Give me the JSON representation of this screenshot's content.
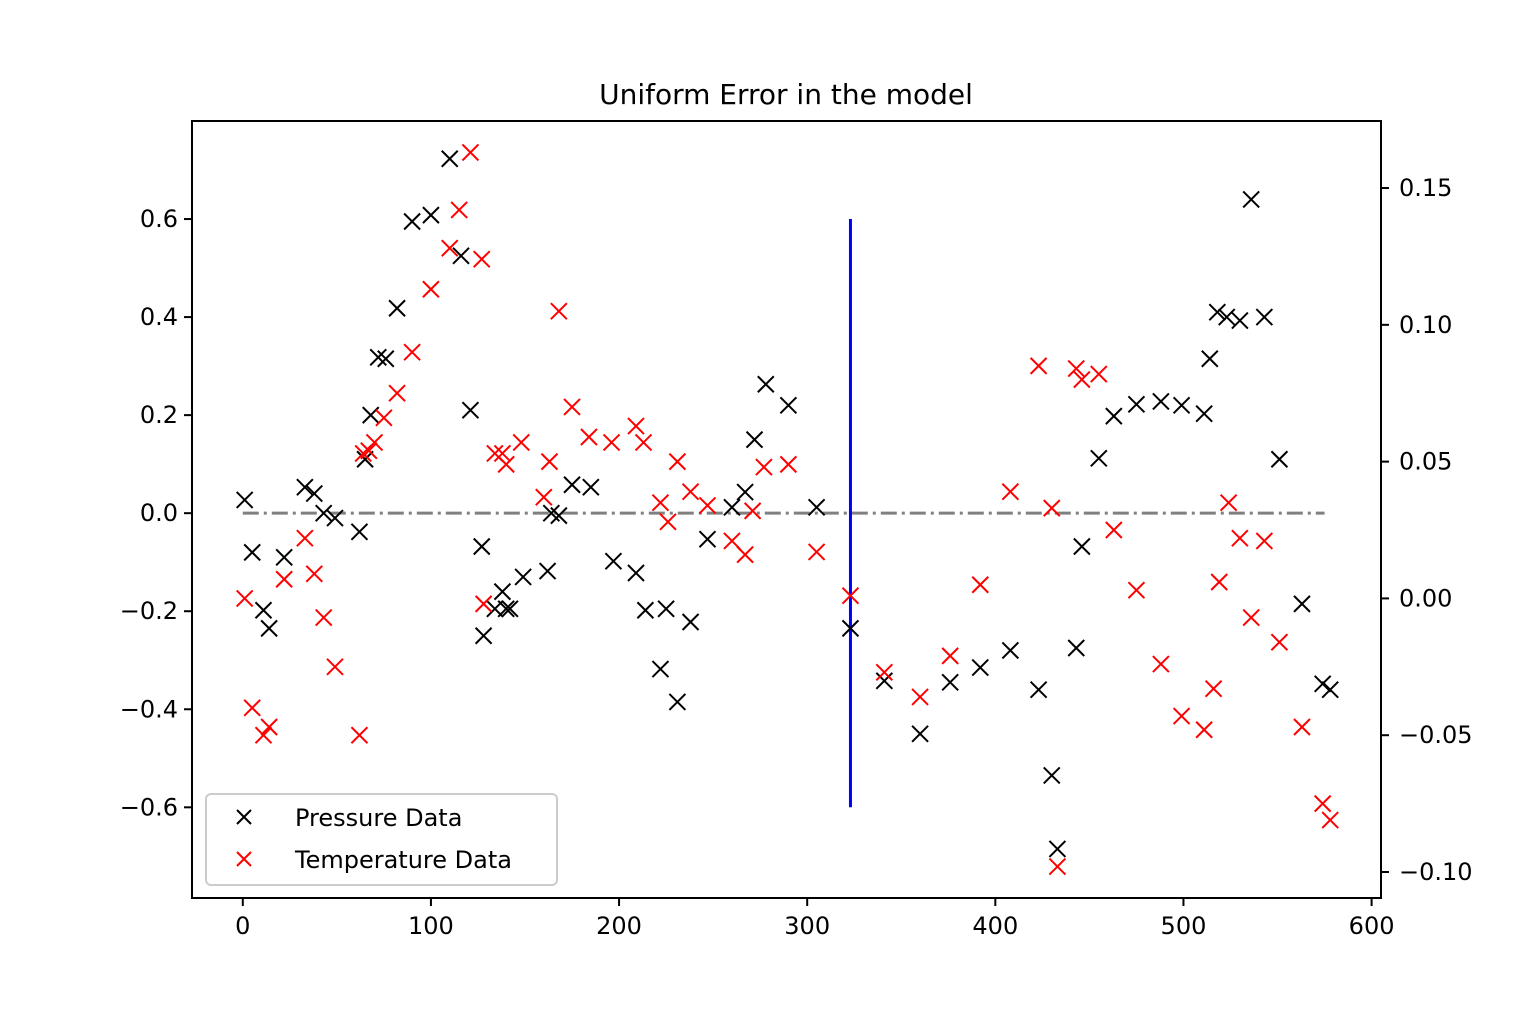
{
  "chart_data": {
    "type": "scatter",
    "title": "Uniform Error in the model",
    "xlabel": "",
    "ylabel": "",
    "y2label": "",
    "xlim": [
      -27,
      605
    ],
    "ylim": [
      -0.785,
      0.8
    ],
    "y2lim": [
      -0.1095,
      0.1745
    ],
    "xticks": [
      0,
      100,
      200,
      300,
      400,
      500,
      600
    ],
    "yticks": [
      -0.6,
      -0.4,
      -0.2,
      0.0,
      0.2,
      0.4,
      0.6
    ],
    "yticklabels": [
      "−0.6",
      "−0.4",
      "−0.2",
      "0.0",
      "0.2",
      "0.4",
      "0.6"
    ],
    "y2ticks": [
      -0.1,
      -0.05,
      0.0,
      0.05,
      0.1,
      0.15
    ],
    "y2ticklabels": [
      "−0.10",
      "−0.05",
      "0.00",
      "0.05",
      "0.10",
      "0.15"
    ],
    "grid": false,
    "legend_position": "lower-left",
    "reference_line": {
      "y": 0.0,
      "x_range": [
        0,
        575
      ],
      "color": "#808080",
      "style": "dash-dot"
    },
    "vertical_line": {
      "x": 323,
      "y_range": [
        -0.6,
        0.6
      ],
      "color": "#0000ff"
    },
    "series": [
      {
        "name": "Pressure Data",
        "axis": "left",
        "color": "#000000",
        "marker": "x",
        "x": [
          1,
          5,
          11,
          14,
          22,
          33,
          38,
          43,
          49,
          62,
          65,
          68,
          72,
          76,
          82,
          90,
          100,
          110,
          116,
          121,
          127,
          128,
          134,
          138,
          140,
          142,
          149,
          162,
          164,
          168,
          175,
          185,
          197,
          209,
          214,
          222,
          225,
          231,
          238,
          247,
          260,
          267,
          272,
          278,
          290,
          305,
          323,
          341,
          360,
          376,
          392,
          408,
          423,
          430,
          433,
          443,
          446,
          455,
          463,
          475,
          488,
          499,
          511,
          514,
          518,
          523,
          530,
          536,
          543,
          551,
          563,
          574,
          578
        ],
        "y": [
          0.027,
          -0.08,
          -0.198,
          -0.235,
          -0.09,
          0.053,
          0.04,
          0.0,
          -0.01,
          -0.038,
          0.11,
          0.2,
          0.318,
          0.315,
          0.418,
          0.595,
          0.608,
          0.723,
          0.525,
          0.21,
          -0.068,
          -0.25,
          -0.195,
          -0.16,
          -0.195,
          -0.195,
          -0.13,
          -0.118,
          0.0,
          -0.005,
          0.058,
          0.053,
          -0.098,
          -0.122,
          -0.198,
          -0.318,
          -0.195,
          -0.385,
          -0.222,
          -0.053,
          0.012,
          0.043,
          0.15,
          0.263,
          0.22,
          0.012,
          -0.235,
          -0.342,
          -0.45,
          -0.345,
          -0.315,
          -0.28,
          -0.36,
          -0.535,
          -0.685,
          -0.275,
          -0.068,
          0.112,
          0.198,
          0.222,
          0.228,
          0.22,
          0.203,
          0.315,
          0.41,
          0.4,
          0.393,
          0.64,
          0.4,
          0.11,
          -0.185,
          -0.348,
          -0.36
        ]
      },
      {
        "name": "Temperature Data",
        "axis": "right",
        "color": "#ff0000",
        "marker": "x",
        "x": [
          1,
          5,
          11,
          14,
          22,
          33,
          38,
          43,
          49,
          62,
          64,
          67,
          70,
          75,
          82,
          90,
          100,
          110,
          115,
          121,
          127,
          128,
          134,
          138,
          140,
          148,
          160,
          163,
          168,
          175,
          184,
          196,
          209,
          213,
          222,
          226,
          231,
          238,
          247,
          260,
          267,
          271,
          277,
          290,
          305,
          323,
          341,
          360,
          376,
          392,
          408,
          423,
          430,
          433,
          443,
          446,
          455,
          463,
          475,
          488,
          499,
          511,
          516,
          519,
          524,
          530,
          536,
          543,
          551,
          563,
          574,
          578
        ],
        "y": [
          0.0,
          -0.04,
          -0.05,
          -0.047,
          0.007,
          0.022,
          0.009,
          -0.007,
          -0.025,
          -0.05,
          0.053,
          0.054,
          0.057,
          0.066,
          0.075,
          0.09,
          0.113,
          0.128,
          0.142,
          0.163,
          0.124,
          -0.002,
          0.053,
          0.053,
          0.049,
          0.057,
          0.037,
          0.05,
          0.105,
          0.07,
          0.059,
          0.057,
          0.063,
          0.057,
          0.035,
          0.028,
          0.05,
          0.039,
          0.034,
          0.021,
          0.016,
          0.032,
          0.048,
          0.049,
          0.017,
          0.001,
          -0.027,
          -0.036,
          -0.021,
          0.005,
          0.039,
          0.085,
          0.033,
          -0.098,
          0.084,
          0.08,
          0.082,
          0.025,
          0.003,
          -0.024,
          -0.043,
          -0.048,
          -0.033,
          0.006,
          0.035,
          0.022,
          -0.007,
          0.021,
          -0.016,
          -0.047,
          -0.075,
          -0.081
        ]
      }
    ]
  }
}
